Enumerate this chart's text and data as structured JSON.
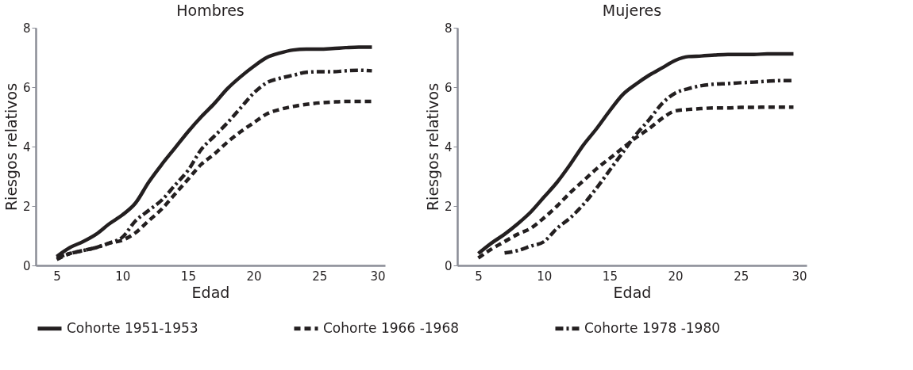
{
  "chart_data": [
    {
      "type": "line",
      "title": "Hombres",
      "xlabel": "Edad",
      "ylabel": "Riesgos relativos",
      "x": [
        5,
        6,
        7,
        8,
        9,
        10,
        11,
        12,
        13,
        14,
        15,
        16,
        17,
        18,
        19,
        20,
        21,
        22,
        23,
        24,
        25,
        26,
        27,
        28,
        29
      ],
      "xlim": [
        3.4,
        30
      ],
      "xticks": [
        5,
        10,
        15,
        20,
        25,
        30
      ],
      "ylim": [
        0,
        8
      ],
      "yticks": [
        0,
        2,
        4,
        6,
        8
      ],
      "grid": false,
      "legend": "bottom",
      "marker": "none",
      "series": [
        {
          "name": "Cohorte 1951-1953",
          "color": "#231f20",
          "line_style": "solid",
          "values": [
            0.3,
            0.6,
            0.8,
            1.05,
            1.4,
            1.7,
            2.1,
            2.8,
            3.4,
            3.95,
            4.5,
            5.0,
            5.45,
            5.95,
            6.35,
            6.7,
            7.0,
            7.15,
            7.25,
            7.28,
            7.28,
            7.3,
            7.33,
            7.35,
            7.35
          ]
        },
        {
          "name": "Cohorte 1966 -1968",
          "color": "#231f20",
          "line_style": "dashed",
          "values": [
            0.2,
            0.4,
            0.5,
            0.6,
            0.75,
            0.85,
            1.1,
            1.5,
            1.9,
            2.4,
            2.9,
            3.4,
            3.75,
            4.15,
            4.5,
            4.8,
            5.1,
            5.25,
            5.35,
            5.42,
            5.47,
            5.5,
            5.52,
            5.52,
            5.52
          ]
        },
        {
          "name": "Cohorte 1978 -1980",
          "color": "#231f20",
          "line_style": "dashdot",
          "values": [
            0.25,
            0.4,
            0.5,
            0.6,
            0.75,
            0.95,
            1.5,
            1.85,
            2.2,
            2.7,
            3.2,
            3.9,
            4.35,
            4.8,
            5.3,
            5.8,
            6.15,
            6.3,
            6.4,
            6.5,
            6.52,
            6.52,
            6.55,
            6.57,
            6.55
          ]
        }
      ]
    },
    {
      "type": "line",
      "title": "Mujeres",
      "xlabel": "Edad",
      "ylabel": "Riesgos relativos",
      "x": [
        5,
        6,
        7,
        8,
        9,
        10,
        11,
        12,
        13,
        14,
        15,
        16,
        17,
        18,
        19,
        20,
        21,
        22,
        23,
        24,
        25,
        26,
        27,
        28,
        29
      ],
      "xlim": [
        3.4,
        30
      ],
      "xticks": [
        5,
        10,
        15,
        20,
        25,
        30
      ],
      "ylim": [
        0,
        8
      ],
      "yticks": [
        0,
        2,
        4,
        6,
        8
      ],
      "grid": false,
      "legend": "bottom",
      "marker": "none",
      "series": [
        {
          "name": "Cohorte 1951-1953",
          "color": "#231f20",
          "line_style": "solid",
          "values": [
            0.4,
            0.75,
            1.05,
            1.4,
            1.8,
            2.3,
            2.8,
            3.4,
            4.05,
            4.6,
            5.2,
            5.75,
            6.1,
            6.4,
            6.65,
            6.9,
            7.03,
            7.05,
            7.08,
            7.1,
            7.1,
            7.1,
            7.12,
            7.12,
            7.12
          ]
        },
        {
          "name": "Cohorte 1966 -1968",
          "color": "#231f20",
          "line_style": "dashed",
          "values": [
            0.25,
            0.55,
            0.8,
            1.05,
            1.25,
            1.6,
            2.0,
            2.45,
            2.85,
            3.25,
            3.6,
            3.95,
            4.3,
            4.6,
            4.95,
            5.2,
            5.25,
            5.28,
            5.3,
            5.3,
            5.32,
            5.32,
            5.33,
            5.33,
            5.33
          ]
        },
        {
          "name": "Cohorte 1978 -1980",
          "color": "#231f20",
          "line_style": "dashdot",
          "values": [
            null,
            null,
            0.42,
            0.5,
            0.65,
            0.8,
            1.25,
            1.6,
            2.05,
            2.6,
            3.2,
            3.8,
            4.4,
            4.9,
            5.45,
            5.8,
            5.95,
            6.05,
            6.1,
            6.12,
            6.15,
            6.17,
            6.2,
            6.22,
            6.22
          ]
        }
      ]
    }
  ]
}
